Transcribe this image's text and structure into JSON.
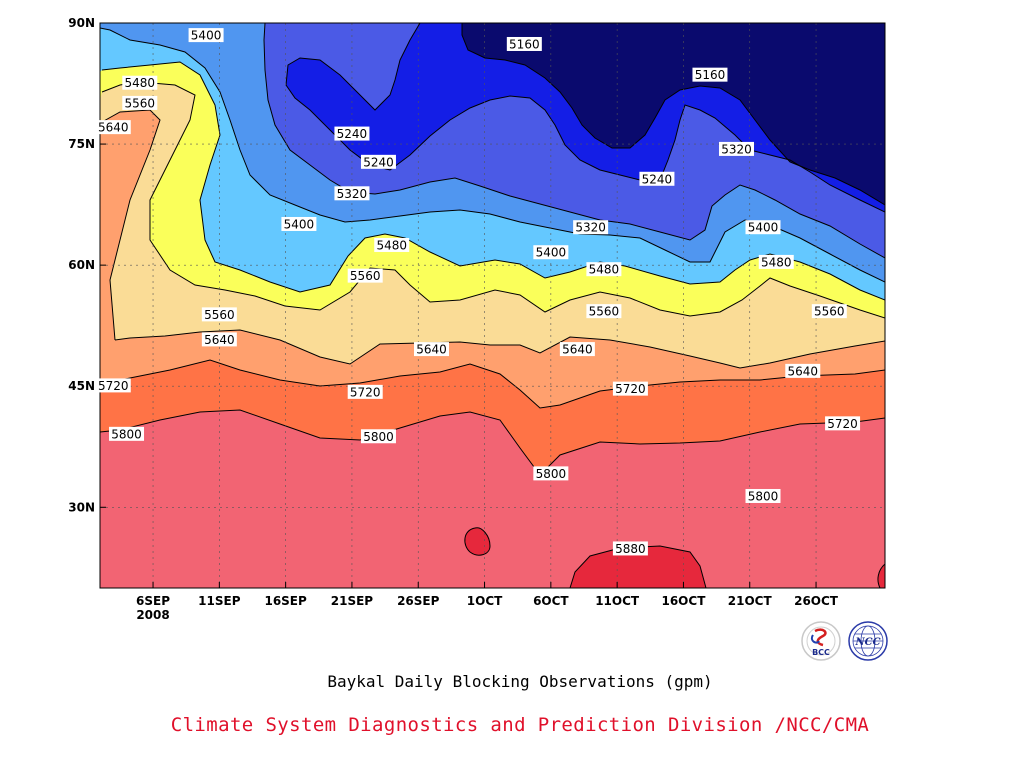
{
  "chart_data": {
    "type": "contour",
    "title": "Baykal Daily Blocking Observations (gpm)",
    "xlabel": "",
    "ylabel": "",
    "x_ticks": [
      "6SEP",
      "11SEP",
      "16SEP",
      "21SEP",
      "26SEP",
      "1OCT",
      "6OCT",
      "11OCT",
      "16OCT",
      "21OCT",
      "26OCT"
    ],
    "x_year_label": "2008",
    "y_ticks": [
      "30N",
      "45N",
      "60N",
      "75N",
      "90N"
    ],
    "ylim": [
      20,
      90
    ],
    "contour_levels": [
      5160,
      5240,
      5320,
      5400,
      5480,
      5560,
      5640,
      5720,
      5800,
      5880
    ],
    "fill_colors": [
      "#f26473",
      "#ff7346",
      "#ffa06e",
      "#fadc96",
      "#faff5a",
      "#64c8ff",
      "#5096f0",
      "#4b5ae6",
      "#141ee6",
      "#0a0a6e"
    ],
    "contour_labels": [
      {
        "value": "5400",
        "date": "10SEP",
        "lat": 88.5
      },
      {
        "value": "5160",
        "date": "4OCT",
        "lat": 87.4
      },
      {
        "value": "5160",
        "date": "18OCT",
        "lat": 83.6
      },
      {
        "value": "5480",
        "date": "5SEP",
        "lat": 82.6
      },
      {
        "value": "5560",
        "date": "5SEP",
        "lat": 80.1
      },
      {
        "value": "5640",
        "date": "3SEP",
        "lat": 77.1
      },
      {
        "value": "5240",
        "date": "21SEP",
        "lat": 76.3
      },
      {
        "value": "5240",
        "date": "23SEP",
        "lat": 72.8
      },
      {
        "value": "5320",
        "date": "21SEP",
        "lat": 68.9
      },
      {
        "value": "5320",
        "date": "20OCT",
        "lat": 74.4
      },
      {
        "value": "5240",
        "date": "14OCT",
        "lat": 70.7
      },
      {
        "value": "5320",
        "date": "9OCT",
        "lat": 64.7
      },
      {
        "value": "5400",
        "date": "22OCT",
        "lat": 64.7
      },
      {
        "value": "5400",
        "date": "17SEP",
        "lat": 65.1
      },
      {
        "value": "5480",
        "date": "24SEP",
        "lat": 62.5
      },
      {
        "value": "5400",
        "date": "6OCT",
        "lat": 61.6
      },
      {
        "value": "5560",
        "date": "22SEP",
        "lat": 58.7
      },
      {
        "value": "5480",
        "date": "10OCT",
        "lat": 59.5
      },
      {
        "value": "5480",
        "date": "23OCT",
        "lat": 60.4
      },
      {
        "value": "5560",
        "date": "11SEP",
        "lat": 53.9
      },
      {
        "value": "5560",
        "date": "10OCT",
        "lat": 54.3
      },
      {
        "value": "5560",
        "date": "27OCT",
        "lat": 54.3
      },
      {
        "value": "5640",
        "date": "11SEP",
        "lat": 50.8
      },
      {
        "value": "5640",
        "date": "27SEP",
        "lat": 49.6
      },
      {
        "value": "5640",
        "date": "8OCT",
        "lat": 49.6
      },
      {
        "value": "5640",
        "date": "25OCT",
        "lat": 46.9
      },
      {
        "value": "5720",
        "date": "3SEP",
        "lat": 45.1
      },
      {
        "value": "5720",
        "date": "22SEP",
        "lat": 44.3
      },
      {
        "value": "5720",
        "date": "12OCT",
        "lat": 44.7
      },
      {
        "value": "5720",
        "date": "28OCT",
        "lat": 40.4
      },
      {
        "value": "5800",
        "date": "4SEP",
        "lat": 39.1
      },
      {
        "value": "5800",
        "date": "23SEP",
        "lat": 38.8
      },
      {
        "value": "5800",
        "date": "6OCT",
        "lat": 34.2
      },
      {
        "value": "5800",
        "date": "22OCT",
        "lat": 31.4
      },
      {
        "value": "5880",
        "date": "12OCT",
        "lat": 24.9
      }
    ]
  },
  "subtitle": "Baykal Daily Blocking Observations (gpm)",
  "credit": "Climate System Diagnostics and Prediction Division /NCC/CMA",
  "credit_color": "#e0102a",
  "logos": [
    {
      "name": "bcc-logo",
      "text": "BCC"
    },
    {
      "name": "ncc-logo",
      "text": "NCC"
    }
  ]
}
